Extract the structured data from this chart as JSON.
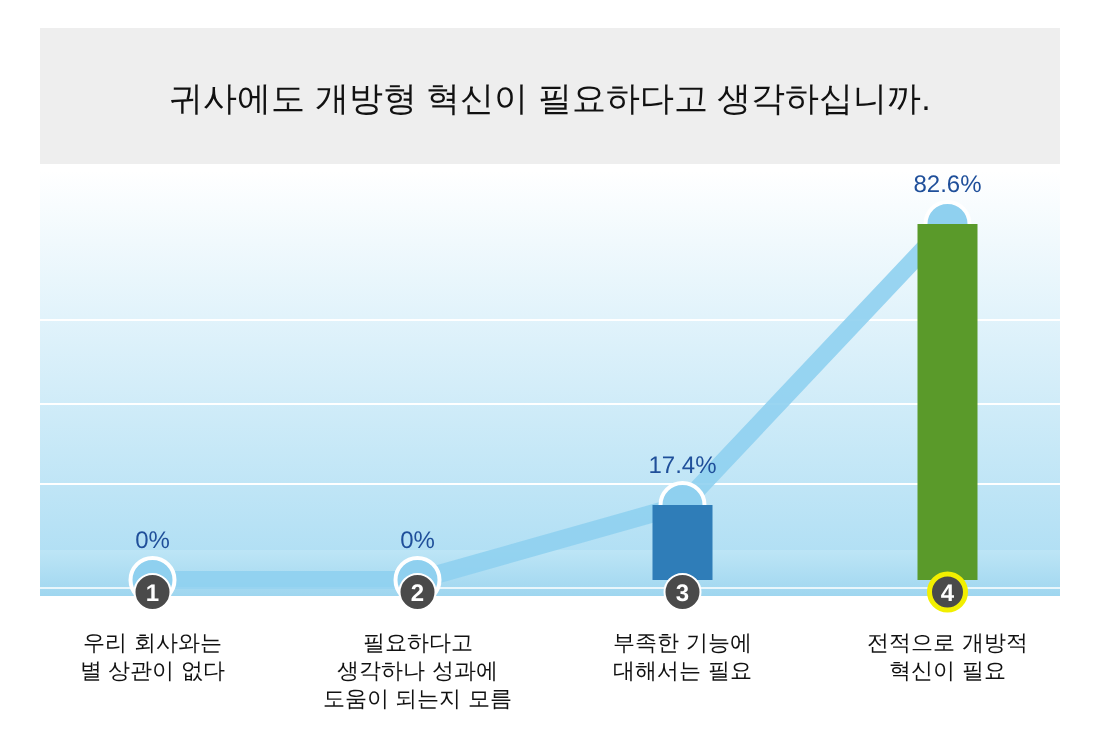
{
  "chart_data": {
    "type": "bar",
    "title": "귀사에도 개방형 혁신이 필요하다고 생각하십니까.",
    "categories": [
      "우리 회사와는\n별 상관이 없다",
      "필요하다고\n생각하나 성과에\n도움이 되는지 모름",
      "부족한 기능에\n대해서는 필요",
      "전적으로 개방적\n혁신이 필요"
    ],
    "series": [
      {
        "type": "line",
        "color": "#8fd0ef",
        "marker": "circle",
        "values": [
          0,
          0,
          17.4,
          82.6
        ],
        "value_labels": [
          "0%",
          "0%",
          "17.4%",
          "82.6%"
        ]
      },
      {
        "colors": [
          "#2f7db8",
          "#2f7db8",
          "#2f7db8",
          "#5a9a2a"
        ],
        "values": [
          0,
          0,
          17.4,
          82.6
        ]
      }
    ],
    "annotations": [
      "1",
      "2",
      "3",
      "4"
    ]
  }
}
